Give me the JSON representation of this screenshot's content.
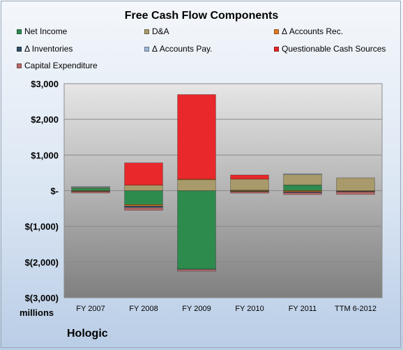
{
  "chart_data": {
    "type": "bar",
    "stacked": true,
    "title": "Free Cash Flow Components",
    "company": "Hologic",
    "units_label": "millions",
    "categories": [
      "FY 2007",
      "FY 2008",
      "FY 2009",
      "FY 2010",
      "FY 2011",
      "TTM 6-2012"
    ],
    "ylim": [
      -3000,
      3000
    ],
    "yticks": [
      3000,
      2000,
      1000,
      0,
      -1000,
      -2000,
      -3000
    ],
    "ytick_labels": [
      "$3,000",
      "$2,000",
      "$1,000",
      "$-",
      "$(1,000)",
      "$(2,000)",
      "$(3,000)"
    ],
    "grid": true,
    "legend_position": "top",
    "series": [
      {
        "name": "Net Income",
        "color": "#2e8b4e",
        "values": [
          75,
          -390,
          -2200,
          15,
          160,
          0
        ]
      },
      {
        "name": "D&A",
        "color": "#a99a6b",
        "values": [
          30,
          155,
          310,
          310,
          300,
          360
        ]
      },
      {
        "name": "Δ Accounts Rec.",
        "color": "#e07a23",
        "values": [
          -15,
          -40,
          15,
          -20,
          -30,
          -15
        ]
      },
      {
        "name": "Δ Inventories",
        "color": "#2f4f6a",
        "values": [
          -10,
          -35,
          0,
          -10,
          -25,
          -20
        ]
      },
      {
        "name": "Δ Accounts Pay.",
        "color": "#9db7d8",
        "values": [
          10,
          -15,
          -10,
          0,
          15,
          0
        ]
      },
      {
        "name": "Questionable Cash Sources",
        "color": "#e8282a",
        "values": [
          0,
          625,
          2370,
          115,
          0,
          0
        ]
      },
      {
        "name": "Capital Expenditure",
        "color": "#b86a6a",
        "values": [
          -40,
          -70,
          -45,
          -40,
          -55,
          -70
        ]
      }
    ]
  }
}
